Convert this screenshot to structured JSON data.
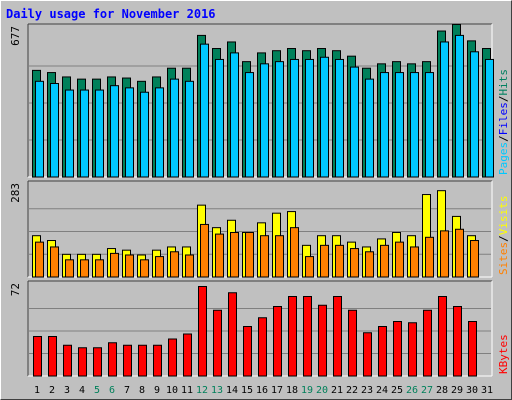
{
  "chart_data": {
    "title": "Daily usage for November 2016",
    "type": "bar",
    "days": [
      "1",
      "2",
      "3",
      "4",
      "5",
      "6",
      "7",
      "8",
      "9",
      "10",
      "11",
      "12",
      "13",
      "14",
      "15",
      "16",
      "17",
      "18",
      "19",
      "20",
      "21",
      "22",
      "23",
      "24",
      "25",
      "26",
      "27",
      "28",
      "29",
      "30",
      "31"
    ],
    "weekend_days": [
      "5",
      "6",
      "12",
      "13",
      "19",
      "20",
      "26",
      "27"
    ],
    "panels": [
      {
        "name": "hits-files-pages",
        "max_label": "677",
        "ymax": 677,
        "labels": [
          {
            "text": "Pages",
            "color": "#00c8ff"
          },
          {
            "text": "Files",
            "color": "#0000ff"
          },
          {
            "text": "Hits",
            "color": "#008060"
          }
        ],
        "series": [
          {
            "name": "Hits",
            "color": "#00805a",
            "values": [
              490,
              480,
              460,
              450,
              450,
              460,
              455,
              440,
              460,
              500,
              500,
              650,
              590,
              620,
              530,
              570,
              580,
              590,
              580,
              590,
              580,
              555,
              500,
              520,
              530,
              520,
              530,
              670,
              700,
              625,
              590
            ]
          },
          {
            "name": "Files",
            "color": "#00c8ff",
            "values": [
              440,
              430,
              400,
              400,
              400,
              420,
              410,
              390,
              410,
              450,
              440,
              610,
              540,
              570,
              480,
              520,
              530,
              540,
              540,
              550,
              540,
              505,
              450,
              480,
              480,
              480,
              480,
              620,
              650,
              575,
              540
            ]
          }
        ]
      },
      {
        "name": "visits-sites",
        "max_label": "283",
        "ymax": 283,
        "labels": [
          {
            "text": "Sites",
            "color": "#ff8000"
          },
          {
            "text": "Visits",
            "color": "#ffff00"
          }
        ],
        "series": [
          {
            "name": "Visits",
            "color": "#ffff00",
            "values": [
              130,
              115,
              72,
              72,
              72,
              90,
              85,
              70,
              85,
              95,
              95,
              225,
              155,
              178,
              140,
              170,
              200,
              205,
              100,
              130,
              130,
              110,
              95,
              120,
              140,
              130,
              258,
              270,
              190,
              130,
              0
            ]
          },
          {
            "name": "Sites",
            "color": "#ff8000",
            "values": [
              110,
              95,
              55,
              55,
              55,
              75,
              70,
              55,
              65,
              80,
              70,
              165,
              135,
              140,
              140,
              130,
              130,
              155,
              65,
              100,
              100,
              90,
              80,
              100,
              110,
              95,
              125,
              145,
              150,
              115,
              0
            ]
          }
        ]
      },
      {
        "name": "kbytes",
        "max_label": "72",
        "ymax": 72,
        "labels": [
          {
            "text": "KBytes",
            "color": "#ff0000"
          }
        ],
        "series": [
          {
            "name": "KBytes",
            "color": "#ff0000",
            "values": [
              32,
              32,
              25,
              23,
              23,
              27,
              25,
              25,
              25,
              30,
              34,
              72,
              53,
              67,
              40,
              47,
              56,
              64,
              64,
              57,
              64,
              53,
              35,
              40,
              44,
              43,
              53,
              64,
              56,
              44,
              0
            ]
          }
        ]
      }
    ]
  }
}
